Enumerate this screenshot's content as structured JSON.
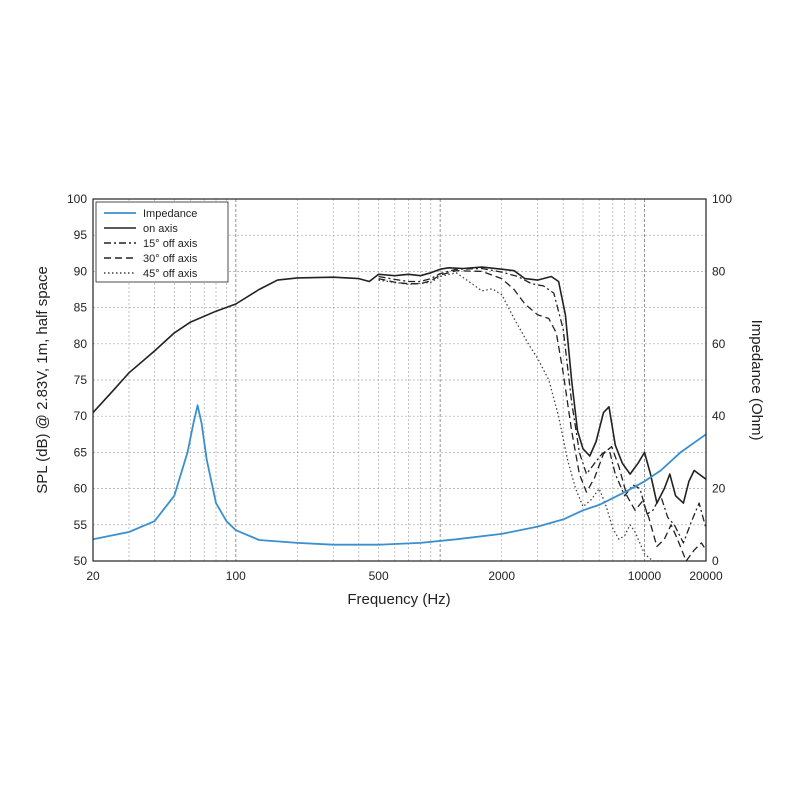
{
  "chart_data": {
    "type": "line",
    "xlabel": "Frequency (Hz)",
    "ylabel": "SPL (dB) @ 2.83V, 1m, half space",
    "y2label": "Impedance (Ohm)",
    "xscale": "log",
    "xlim": [
      20,
      20000
    ],
    "ylim": [
      50,
      100
    ],
    "y2lim": [
      0,
      100
    ],
    "grid": true,
    "legend_position": "top-left",
    "x_ticks": [
      20,
      100,
      500,
      2000,
      10000,
      20000
    ],
    "x_tick_labels": [
      "20",
      "100",
      "500",
      "2000",
      "10000",
      "20000"
    ],
    "y_ticks": [
      50,
      55,
      60,
      65,
      70,
      75,
      80,
      85,
      90,
      95,
      100
    ],
    "y_tick_labels": [
      "50",
      "55",
      "60",
      "65",
      "70",
      "75",
      "80",
      "85",
      "90",
      "95",
      "100"
    ],
    "y2_ticks": [
      0,
      20,
      40,
      60,
      80,
      100
    ],
    "y2_tick_labels": [
      "0",
      "20",
      "40",
      "60",
      "80",
      "100"
    ],
    "series": [
      {
        "name": "Impedance",
        "axis": "right",
        "color": "#3a8fd0",
        "style": "solid",
        "points": [
          [
            20,
            6
          ],
          [
            30,
            8
          ],
          [
            40,
            11
          ],
          [
            50,
            18
          ],
          [
            58,
            30
          ],
          [
            62,
            38
          ],
          [
            65,
            43
          ],
          [
            68,
            38
          ],
          [
            72,
            28
          ],
          [
            80,
            16
          ],
          [
            90,
            11
          ],
          [
            100,
            8.5
          ],
          [
            130,
            5.8
          ],
          [
            200,
            5.0
          ],
          [
            300,
            4.5
          ],
          [
            500,
            4.5
          ],
          [
            800,
            5.0
          ],
          [
            1200,
            6.0
          ],
          [
            2000,
            7.5
          ],
          [
            3000,
            9.5
          ],
          [
            4000,
            11.5
          ],
          [
            5000,
            14
          ],
          [
            6000,
            15.5
          ],
          [
            8000,
            19
          ],
          [
            10000,
            22
          ],
          [
            12000,
            25
          ],
          [
            15000,
            30
          ],
          [
            20000,
            35
          ]
        ]
      },
      {
        "name": "on axis",
        "axis": "left",
        "color": "#222222",
        "style": "solid",
        "points": [
          [
            20,
            70.5
          ],
          [
            25,
            73.5
          ],
          [
            30,
            76
          ],
          [
            40,
            79
          ],
          [
            50,
            81.5
          ],
          [
            60,
            83
          ],
          [
            80,
            84.5
          ],
          [
            100,
            85.5
          ],
          [
            130,
            87.5
          ],
          [
            160,
            88.8
          ],
          [
            200,
            89.1
          ],
          [
            300,
            89.2
          ],
          [
            400,
            89.0
          ],
          [
            450,
            88.6
          ],
          [
            500,
            89.6
          ],
          [
            600,
            89.4
          ],
          [
            700,
            89.6
          ],
          [
            800,
            89.4
          ],
          [
            900,
            89.8
          ],
          [
            1000,
            90.3
          ],
          [
            1100,
            90.5
          ],
          [
            1300,
            90.4
          ],
          [
            1600,
            90.6
          ],
          [
            2000,
            90.3
          ],
          [
            2300,
            90.1
          ],
          [
            2600,
            89.0
          ],
          [
            3000,
            88.8
          ],
          [
            3500,
            89.3
          ],
          [
            3800,
            88.6
          ],
          [
            4100,
            84
          ],
          [
            4400,
            75
          ],
          [
            4700,
            68
          ],
          [
            5000,
            65.5
          ],
          [
            5400,
            64.5
          ],
          [
            5800,
            66.5
          ],
          [
            6300,
            70.5
          ],
          [
            6700,
            71.3
          ],
          [
            7200,
            66
          ],
          [
            7800,
            63.5
          ],
          [
            8500,
            62
          ],
          [
            9300,
            63.5
          ],
          [
            10000,
            65
          ],
          [
            10700,
            62
          ],
          [
            11500,
            58
          ],
          [
            12500,
            60
          ],
          [
            13300,
            62
          ],
          [
            14200,
            59
          ],
          [
            15500,
            58
          ],
          [
            16500,
            61
          ],
          [
            17500,
            62.5
          ],
          [
            18500,
            62
          ],
          [
            20000,
            61.3
          ]
        ]
      },
      {
        "name": "15° off axis",
        "axis": "left",
        "color": "#222222",
        "style": "dashdot",
        "points": [
          [
            500,
            89.3
          ],
          [
            600,
            88.9
          ],
          [
            700,
            88.6
          ],
          [
            800,
            88.6
          ],
          [
            900,
            89.0
          ],
          [
            1000,
            89.7
          ],
          [
            1200,
            90.3
          ],
          [
            1600,
            90.4
          ],
          [
            2000,
            89.9
          ],
          [
            2400,
            89.3
          ],
          [
            2800,
            88.3
          ],
          [
            3200,
            88.0
          ],
          [
            3600,
            87.0
          ],
          [
            4000,
            82
          ],
          [
            4400,
            72
          ],
          [
            4800,
            65
          ],
          [
            5200,
            62
          ],
          [
            5700,
            63.5
          ],
          [
            6200,
            64.8
          ],
          [
            6700,
            65.5
          ],
          [
            7200,
            62
          ],
          [
            8000,
            59
          ],
          [
            8800,
            60.5
          ],
          [
            9500,
            60
          ],
          [
            10300,
            56.5
          ],
          [
            11000,
            57
          ],
          [
            12000,
            59
          ],
          [
            13000,
            56
          ],
          [
            14000,
            55
          ],
          [
            15500,
            52.5
          ],
          [
            17000,
            55.5
          ],
          [
            18500,
            58
          ],
          [
            20000,
            54.5
          ]
        ]
      },
      {
        "name": "30° off axis",
        "axis": "left",
        "color": "#222222",
        "style": "dashed",
        "points": [
          [
            500,
            89.0
          ],
          [
            600,
            88.5
          ],
          [
            700,
            88.3
          ],
          [
            800,
            88.3
          ],
          [
            900,
            88.7
          ],
          [
            1000,
            89.5
          ],
          [
            1200,
            90.1
          ],
          [
            1600,
            90.0
          ],
          [
            2000,
            89.0
          ],
          [
            2300,
            87.5
          ],
          [
            2600,
            85.5
          ],
          [
            3000,
            84.0
          ],
          [
            3400,
            83.5
          ],
          [
            3700,
            81.5
          ],
          [
            4000,
            76
          ],
          [
            4400,
            68
          ],
          [
            4800,
            62
          ],
          [
            5200,
            59.5
          ],
          [
            5700,
            61.5
          ],
          [
            6300,
            64.8
          ],
          [
            6900,
            65.8
          ],
          [
            7500,
            63
          ],
          [
            8200,
            59
          ],
          [
            9000,
            57
          ],
          [
            9800,
            58.3
          ],
          [
            10500,
            56
          ],
          [
            11500,
            52
          ],
          [
            12500,
            53
          ],
          [
            13500,
            55
          ],
          [
            14500,
            53
          ],
          [
            16000,
            50
          ],
          [
            17500,
            51.5
          ],
          [
            19000,
            52.5
          ],
          [
            20000,
            51.5
          ]
        ]
      },
      {
        "name": "45° off axis",
        "axis": "left",
        "color": "#444444",
        "style": "dotted",
        "points": [
          [
            500,
            88.8
          ],
          [
            700,
            88.2
          ],
          [
            900,
            88.5
          ],
          [
            1000,
            89.3
          ],
          [
            1200,
            89.8
          ],
          [
            1400,
            88.5
          ],
          [
            1600,
            87.3
          ],
          [
            1800,
            87.6
          ],
          [
            2000,
            86.8
          ],
          [
            2300,
            83.5
          ],
          [
            2700,
            80
          ],
          [
            3000,
            78
          ],
          [
            3400,
            75
          ],
          [
            3800,
            70
          ],
          [
            4200,
            64
          ],
          [
            4600,
            60
          ],
          [
            5000,
            57.5
          ],
          [
            5500,
            58.5
          ],
          [
            6000,
            60
          ],
          [
            6500,
            57.5
          ],
          [
            7000,
            54.5
          ],
          [
            7500,
            53
          ],
          [
            8000,
            53.5
          ],
          [
            8500,
            55
          ],
          [
            9000,
            54
          ],
          [
            10000,
            51
          ],
          [
            11000,
            50
          ],
          [
            12500,
            50
          ]
        ]
      }
    ]
  }
}
